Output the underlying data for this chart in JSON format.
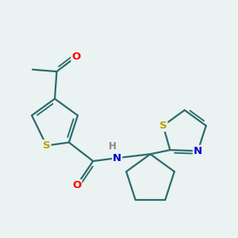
{
  "bg_color": "#eaf2f2",
  "bond_color": "#2d6b6b",
  "bond_width": 1.6,
  "atom_colors": {
    "S": "#b8a000",
    "O": "#ff0000",
    "N": "#0000cc",
    "H": "#888888",
    "C": "#2d6b6b"
  },
  "font_size": 9.5,
  "figsize": [
    3.0,
    3.0
  ],
  "dpi": 100,
  "xlim": [
    0.5,
    6.5
  ],
  "ylim": [
    0.8,
    5.8
  ]
}
